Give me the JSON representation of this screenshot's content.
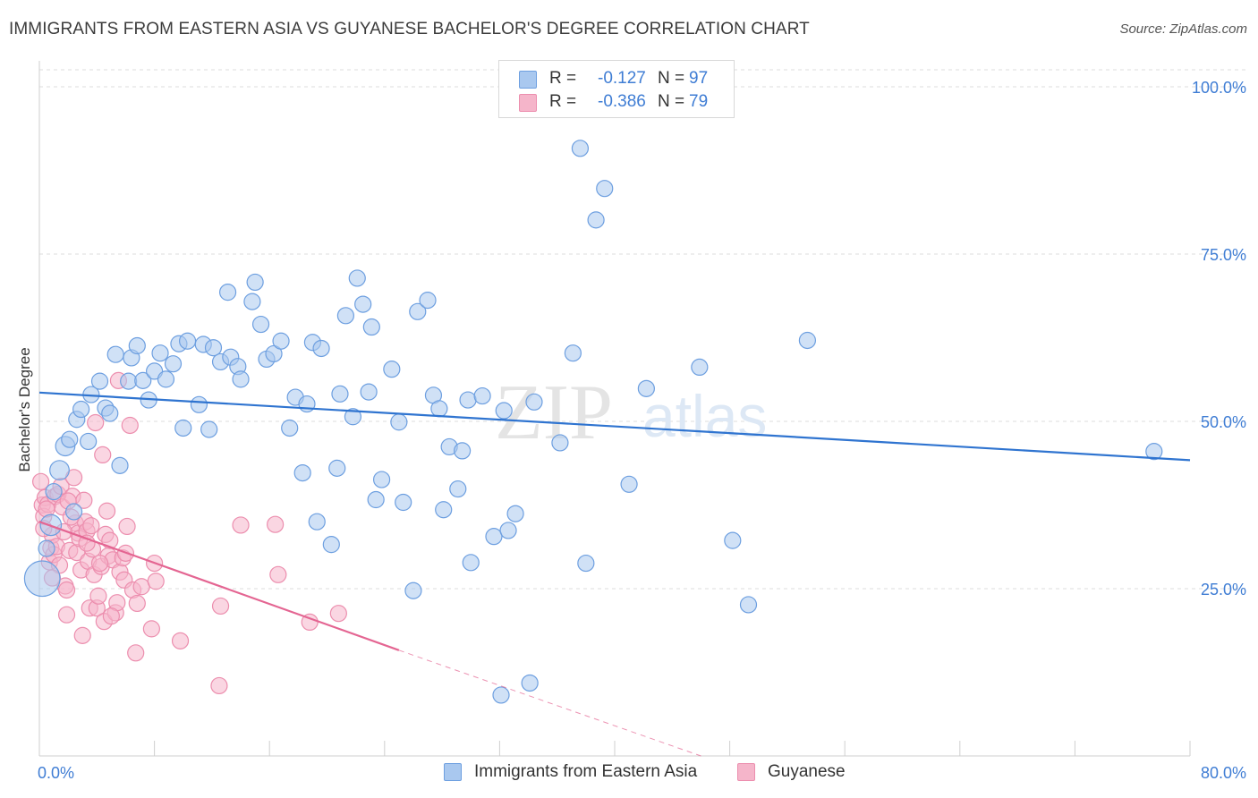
{
  "title": "IMMIGRANTS FROM EASTERN ASIA VS GUYANESE BACHELOR'S DEGREE CORRELATION CHART",
  "source": "Source: ZipAtlas.com",
  "watermark": {
    "zip": "ZIP",
    "atlas": "atlas"
  },
  "legend": {
    "r_label": "R =",
    "n_label": "N =",
    "rows": [
      {
        "r": "-0.127",
        "n": "97"
      },
      {
        "r": "-0.386",
        "n": "79"
      }
    ]
  },
  "colors": {
    "blue_fill": "#a9c8ef",
    "blue_stroke": "#6d9fe0",
    "blue_line": "#2f74d0",
    "pink_fill": "#f5b5ca",
    "pink_stroke": "#ec8eae",
    "pink_line": "#e46592",
    "axis_tick_text": "#3f7dd4",
    "grid": "#dddddd"
  },
  "chart_data": {
    "type": "scatter",
    "title": "IMMIGRANTS FROM EASTERN ASIA VS GUYANESE BACHELOR'S DEGREE CORRELATION CHART",
    "xlabel": "",
    "ylabel": "Bachelor's Degree",
    "xlim": [
      0,
      80
    ],
    "ylim": [
      0,
      100
    ],
    "x_tick_labels": [
      "0.0%",
      "80.0%"
    ],
    "y_tick_labels": [
      "25.0%",
      "50.0%",
      "75.0%",
      "100.0%"
    ],
    "y_ticks": [
      25,
      50,
      75,
      100
    ],
    "x_minor_ticks": [
      0,
      8,
      16,
      24,
      32,
      40,
      48,
      56,
      64,
      72,
      80
    ],
    "grid": true,
    "legend_position": "top-center",
    "series": [
      {
        "name": "Immigrants from Eastern Asia",
        "r": -0.127,
        "n": 97,
        "trend": {
          "x": [
            0,
            80
          ],
          "y": [
            54.3,
            44.2
          ],
          "style": "solid"
        },
        "points": [
          {
            "x": 0.2,
            "y": 26.5,
            "s": 2.2
          },
          {
            "x": 0.8,
            "y": 34.5,
            "s": 1.3
          },
          {
            "x": 1.0,
            "y": 39.5,
            "s": 1.0
          },
          {
            "x": 1.4,
            "y": 42.7,
            "s": 1.2
          },
          {
            "x": 1.8,
            "y": 46.3,
            "s": 1.2
          },
          {
            "x": 2.1,
            "y": 47.3,
            "s": 1.0
          },
          {
            "x": 2.6,
            "y": 50.3,
            "s": 1.0
          },
          {
            "x": 2.9,
            "y": 51.8,
            "s": 1.0
          },
          {
            "x": 3.4,
            "y": 47.0,
            "s": 1.0
          },
          {
            "x": 3.6,
            "y": 54.0,
            "s": 1.0
          },
          {
            "x": 4.2,
            "y": 56.0,
            "s": 1.0
          },
          {
            "x": 4.6,
            "y": 52.0,
            "s": 1.0
          },
          {
            "x": 4.9,
            "y": 51.2,
            "s": 1.0
          },
          {
            "x": 5.6,
            "y": 43.4,
            "s": 1.0
          },
          {
            "x": 5.3,
            "y": 60.0,
            "s": 1.0
          },
          {
            "x": 6.2,
            "y": 56.0,
            "s": 1.0
          },
          {
            "x": 6.4,
            "y": 59.5,
            "s": 1.0
          },
          {
            "x": 6.8,
            "y": 61.3,
            "s": 1.0
          },
          {
            "x": 7.2,
            "y": 56.1,
            "s": 1.0
          },
          {
            "x": 7.6,
            "y": 53.2,
            "s": 1.0
          },
          {
            "x": 8.0,
            "y": 57.5,
            "s": 1.0
          },
          {
            "x": 8.4,
            "y": 60.2,
            "s": 1.0
          },
          {
            "x": 8.8,
            "y": 56.3,
            "s": 1.0
          },
          {
            "x": 9.3,
            "y": 58.6,
            "s": 1.0
          },
          {
            "x": 9.7,
            "y": 61.6,
            "s": 1.0
          },
          {
            "x": 10.0,
            "y": 49.0,
            "s": 1.0
          },
          {
            "x": 10.3,
            "y": 62.0,
            "s": 1.0
          },
          {
            "x": 11.1,
            "y": 52.5,
            "s": 1.0
          },
          {
            "x": 11.4,
            "y": 61.5,
            "s": 1.0
          },
          {
            "x": 11.8,
            "y": 48.8,
            "s": 1.0
          },
          {
            "x": 12.1,
            "y": 61.0,
            "s": 1.0
          },
          {
            "x": 12.6,
            "y": 58.9,
            "s": 1.0
          },
          {
            "x": 13.3,
            "y": 59.6,
            "s": 1.0
          },
          {
            "x": 13.8,
            "y": 58.2,
            "s": 1.0
          },
          {
            "x": 14.0,
            "y": 56.3,
            "s": 1.0
          },
          {
            "x": 13.1,
            "y": 69.3,
            "s": 1.0
          },
          {
            "x": 14.8,
            "y": 67.9,
            "s": 1.0
          },
          {
            "x": 15.0,
            "y": 70.8,
            "s": 1.0
          },
          {
            "x": 15.4,
            "y": 64.5,
            "s": 1.0
          },
          {
            "x": 15.8,
            "y": 59.3,
            "s": 1.0
          },
          {
            "x": 16.3,
            "y": 60.1,
            "s": 1.0
          },
          {
            "x": 16.8,
            "y": 62.0,
            "s": 1.0
          },
          {
            "x": 17.4,
            "y": 49.0,
            "s": 1.0
          },
          {
            "x": 17.8,
            "y": 53.6,
            "s": 1.0
          },
          {
            "x": 18.3,
            "y": 42.3,
            "s": 1.0
          },
          {
            "x": 18.6,
            "y": 52.6,
            "s": 1.0
          },
          {
            "x": 19.0,
            "y": 61.8,
            "s": 1.0
          },
          {
            "x": 19.3,
            "y": 35.0,
            "s": 1.0
          },
          {
            "x": 19.6,
            "y": 60.9,
            "s": 1.0
          },
          {
            "x": 20.3,
            "y": 31.6,
            "s": 1.0
          },
          {
            "x": 20.7,
            "y": 43.0,
            "s": 1.0
          },
          {
            "x": 20.9,
            "y": 54.1,
            "s": 1.0
          },
          {
            "x": 21.3,
            "y": 65.8,
            "s": 1.0
          },
          {
            "x": 21.8,
            "y": 50.7,
            "s": 1.0
          },
          {
            "x": 22.1,
            "y": 71.4,
            "s": 1.0
          },
          {
            "x": 22.5,
            "y": 67.5,
            "s": 1.0
          },
          {
            "x": 22.9,
            "y": 54.4,
            "s": 1.0
          },
          {
            "x": 23.1,
            "y": 64.1,
            "s": 1.0
          },
          {
            "x": 23.4,
            "y": 38.3,
            "s": 1.0
          },
          {
            "x": 23.8,
            "y": 41.3,
            "s": 1.0
          },
          {
            "x": 24.5,
            "y": 57.8,
            "s": 1.0
          },
          {
            "x": 25.0,
            "y": 49.9,
            "s": 1.0
          },
          {
            "x": 25.3,
            "y": 37.9,
            "s": 1.0
          },
          {
            "x": 26.0,
            "y": 24.7,
            "s": 1.0
          },
          {
            "x": 26.3,
            "y": 66.4,
            "s": 1.0
          },
          {
            "x": 27.0,
            "y": 68.1,
            "s": 1.0
          },
          {
            "x": 27.4,
            "y": 53.9,
            "s": 1.0
          },
          {
            "x": 27.8,
            "y": 51.9,
            "s": 1.0
          },
          {
            "x": 28.1,
            "y": 36.8,
            "s": 1.0
          },
          {
            "x": 28.5,
            "y": 46.2,
            "s": 1.0
          },
          {
            "x": 29.1,
            "y": 39.9,
            "s": 1.0
          },
          {
            "x": 29.4,
            "y": 45.6,
            "s": 1.0
          },
          {
            "x": 29.8,
            "y": 53.2,
            "s": 1.0
          },
          {
            "x": 30.0,
            "y": 28.9,
            "s": 1.0
          },
          {
            "x": 30.8,
            "y": 53.8,
            "s": 1.0
          },
          {
            "x": 31.6,
            "y": 32.8,
            "s": 1.0
          },
          {
            "x": 32.1,
            "y": 9.1,
            "s": 1.0
          },
          {
            "x": 32.3,
            "y": 51.6,
            "s": 1.0
          },
          {
            "x": 32.6,
            "y": 33.7,
            "s": 1.0
          },
          {
            "x": 33.1,
            "y": 36.2,
            "s": 1.0
          },
          {
            "x": 34.1,
            "y": 10.9,
            "s": 1.0
          },
          {
            "x": 34.4,
            "y": 52.9,
            "s": 1.0
          },
          {
            "x": 36.2,
            "y": 46.8,
            "s": 1.0
          },
          {
            "x": 37.1,
            "y": 60.2,
            "s": 1.0
          },
          {
            "x": 37.6,
            "y": 90.8,
            "s": 1.0
          },
          {
            "x": 38.0,
            "y": 28.8,
            "s": 1.0
          },
          {
            "x": 38.7,
            "y": 80.1,
            "s": 1.0
          },
          {
            "x": 39.3,
            "y": 84.8,
            "s": 1.0
          },
          {
            "x": 41.0,
            "y": 40.6,
            "s": 1.0
          },
          {
            "x": 42.2,
            "y": 54.9,
            "s": 1.0
          },
          {
            "x": 45.9,
            "y": 58.1,
            "s": 1.0
          },
          {
            "x": 48.2,
            "y": 32.2,
            "s": 1.0
          },
          {
            "x": 49.3,
            "y": 22.6,
            "s": 1.0
          },
          {
            "x": 53.4,
            "y": 62.1,
            "s": 1.0
          },
          {
            "x": 77.5,
            "y": 45.5,
            "s": 1.0
          },
          {
            "x": 0.5,
            "y": 31.0,
            "s": 1.0
          },
          {
            "x": 2.4,
            "y": 36.5,
            "s": 1.0
          }
        ]
      },
      {
        "name": "Guyanese",
        "r": -0.386,
        "n": 79,
        "trend": {
          "x": [
            0,
            25
          ],
          "y": [
            35.0,
            15.8
          ],
          "style": "solid",
          "extended_x": [
            25,
            46
          ],
          "extended_y": [
            15.8,
            0
          ],
          "extended_style": "dashed"
        },
        "points": [
          {
            "x": 0.1,
            "y": 41.0,
            "s": 1.0
          },
          {
            "x": 0.2,
            "y": 37.5,
            "s": 1.0
          },
          {
            "x": 0.3,
            "y": 35.8,
            "s": 1.0
          },
          {
            "x": 0.4,
            "y": 38.6,
            "s": 1.0
          },
          {
            "x": 0.6,
            "y": 37.6,
            "s": 1.0
          },
          {
            "x": 0.7,
            "y": 29.0,
            "s": 1.0
          },
          {
            "x": 0.8,
            "y": 31.1,
            "s": 1.0
          },
          {
            "x": 0.9,
            "y": 33.0,
            "s": 1.0
          },
          {
            "x": 1.0,
            "y": 30.1,
            "s": 1.0
          },
          {
            "x": 1.1,
            "y": 38.8,
            "s": 1.0
          },
          {
            "x": 1.2,
            "y": 31.3,
            "s": 1.0
          },
          {
            "x": 1.3,
            "y": 39.1,
            "s": 1.0
          },
          {
            "x": 1.5,
            "y": 40.3,
            "s": 1.0
          },
          {
            "x": 1.6,
            "y": 37.2,
            "s": 1.0
          },
          {
            "x": 1.8,
            "y": 25.4,
            "s": 1.0
          },
          {
            "x": 1.9,
            "y": 24.8,
            "s": 1.0
          },
          {
            "x": 1.9,
            "y": 21.1,
            "s": 1.0
          },
          {
            "x": 2.1,
            "y": 30.7,
            "s": 1.0
          },
          {
            "x": 2.3,
            "y": 38.8,
            "s": 1.0
          },
          {
            "x": 2.4,
            "y": 41.6,
            "s": 1.0
          },
          {
            "x": 2.5,
            "y": 34.8,
            "s": 1.0
          },
          {
            "x": 2.6,
            "y": 30.4,
            "s": 1.0
          },
          {
            "x": 2.7,
            "y": 33.3,
            "s": 1.0
          },
          {
            "x": 2.8,
            "y": 32.5,
            "s": 1.0
          },
          {
            "x": 2.9,
            "y": 27.8,
            "s": 1.0
          },
          {
            "x": 3.0,
            "y": 18.0,
            "s": 1.0
          },
          {
            "x": 3.1,
            "y": 38.2,
            "s": 1.0
          },
          {
            "x": 3.2,
            "y": 35.0,
            "s": 1.0
          },
          {
            "x": 3.3,
            "y": 33.6,
            "s": 1.0
          },
          {
            "x": 3.4,
            "y": 29.1,
            "s": 1.0
          },
          {
            "x": 3.5,
            "y": 22.1,
            "s": 1.0
          },
          {
            "x": 3.7,
            "y": 30.9,
            "s": 1.0
          },
          {
            "x": 3.8,
            "y": 27.1,
            "s": 1.0
          },
          {
            "x": 3.9,
            "y": 49.8,
            "s": 1.0
          },
          {
            "x": 4.0,
            "y": 22.1,
            "s": 1.0
          },
          {
            "x": 4.1,
            "y": 23.9,
            "s": 1.0
          },
          {
            "x": 4.3,
            "y": 28.3,
            "s": 1.0
          },
          {
            "x": 4.4,
            "y": 45.0,
            "s": 1.0
          },
          {
            "x": 4.5,
            "y": 20.1,
            "s": 1.0
          },
          {
            "x": 4.6,
            "y": 33.1,
            "s": 1.0
          },
          {
            "x": 4.7,
            "y": 36.6,
            "s": 1.0
          },
          {
            "x": 4.8,
            "y": 29.9,
            "s": 1.0
          },
          {
            "x": 4.9,
            "y": 32.2,
            "s": 1.0
          },
          {
            "x": 5.1,
            "y": 29.3,
            "s": 1.0
          },
          {
            "x": 5.3,
            "y": 21.4,
            "s": 1.0
          },
          {
            "x": 5.4,
            "y": 22.9,
            "s": 1.0
          },
          {
            "x": 5.5,
            "y": 56.1,
            "s": 1.0
          },
          {
            "x": 5.6,
            "y": 27.5,
            "s": 1.0
          },
          {
            "x": 5.8,
            "y": 29.6,
            "s": 1.0
          },
          {
            "x": 5.9,
            "y": 26.3,
            "s": 1.0
          },
          {
            "x": 6.1,
            "y": 34.3,
            "s": 1.0
          },
          {
            "x": 6.3,
            "y": 49.4,
            "s": 1.0
          },
          {
            "x": 6.5,
            "y": 24.8,
            "s": 1.0
          },
          {
            "x": 6.7,
            "y": 15.4,
            "s": 1.0
          },
          {
            "x": 6.8,
            "y": 22.8,
            "s": 1.0
          },
          {
            "x": 7.1,
            "y": 25.3,
            "s": 1.0
          },
          {
            "x": 7.8,
            "y": 19.0,
            "s": 1.0
          },
          {
            "x": 8.0,
            "y": 28.8,
            "s": 1.0
          },
          {
            "x": 8.1,
            "y": 26.1,
            "s": 1.0
          },
          {
            "x": 9.8,
            "y": 17.2,
            "s": 1.0
          },
          {
            "x": 12.5,
            "y": 10.5,
            "s": 1.0
          },
          {
            "x": 12.6,
            "y": 22.4,
            "s": 1.0
          },
          {
            "x": 14.0,
            "y": 34.5,
            "s": 1.0
          },
          {
            "x": 16.4,
            "y": 34.6,
            "s": 1.0
          },
          {
            "x": 16.6,
            "y": 27.1,
            "s": 1.0
          },
          {
            "x": 18.8,
            "y": 20.0,
            "s": 1.0
          },
          {
            "x": 20.8,
            "y": 21.3,
            "s": 1.0
          },
          {
            "x": 0.3,
            "y": 34.0,
            "s": 1.0
          },
          {
            "x": 0.5,
            "y": 36.9,
            "s": 1.0
          },
          {
            "x": 1.4,
            "y": 28.5,
            "s": 1.0
          },
          {
            "x": 2.2,
            "y": 35.7,
            "s": 1.0
          },
          {
            "x": 3.6,
            "y": 34.4,
            "s": 1.0
          },
          {
            "x": 4.2,
            "y": 28.8,
            "s": 1.0
          },
          {
            "x": 5.0,
            "y": 20.9,
            "s": 1.0
          },
          {
            "x": 0.9,
            "y": 26.6,
            "s": 1.0
          },
          {
            "x": 1.7,
            "y": 33.5,
            "s": 1.0
          },
          {
            "x": 2.0,
            "y": 38.1,
            "s": 1.0
          },
          {
            "x": 3.3,
            "y": 31.8,
            "s": 1.0
          },
          {
            "x": 6.0,
            "y": 30.3,
            "s": 1.0
          }
        ]
      }
    ]
  },
  "bottom_legend": [
    "Immigrants from Eastern Asia",
    "Guyanese"
  ]
}
